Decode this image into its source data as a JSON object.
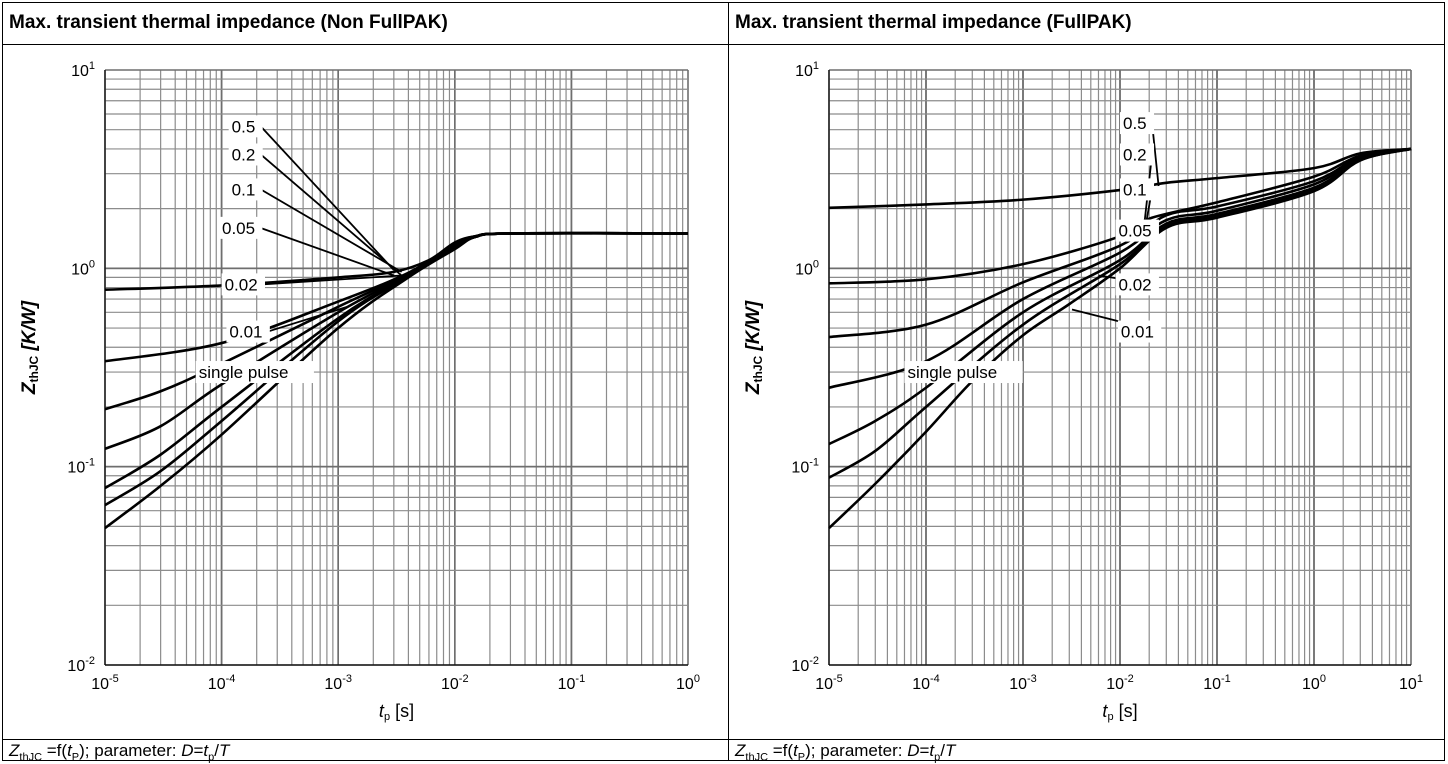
{
  "panels": [
    {
      "title": "Max. transient thermal impedance (Non FullPAK)",
      "caption": {
        "z": "Z",
        "z_sub": "thJC",
        "mid": " =f(",
        "t": "t",
        "t_sub": "P",
        "rest": "); parameter: ",
        "d": "D",
        "eq": "=",
        "t2": "t",
        "t2_sub": "p",
        "slash": "/",
        "T": "T"
      }
    },
    {
      "title": "Max. transient thermal impedance (FullPAK)",
      "caption": {
        "z": "Z",
        "z_sub": "thJC",
        "mid": " =f(",
        "t": "t",
        "t_sub": "P",
        "rest": "); parameter: ",
        "d": "D",
        "eq": "=",
        "t2": "t",
        "t2_sub": "p",
        "slash": "/",
        "T": "T"
      }
    }
  ],
  "chart_data": [
    {
      "type": "line",
      "title": "Max. transient thermal impedance (Non FullPAK)",
      "xscale": "log",
      "yscale": "log",
      "xlabel": "tp [s]",
      "xlabel_main": "t",
      "xlabel_sub": "p",
      "xlabel_unit": " [s]",
      "ylabel": "ZthJC [K/W]",
      "ylabel_main": "Z",
      "ylabel_sub": "thJC",
      "ylabel_unit": " [K/W]",
      "xlim": [
        1e-05,
        1
      ],
      "ylim": [
        0.01,
        10
      ],
      "grid": true,
      "x_ticks": [
        {
          "v": 1e-05,
          "base": "10",
          "exp": "-5"
        },
        {
          "v": 0.0001,
          "base": "10",
          "exp": "-4"
        },
        {
          "v": 0.001,
          "base": "10",
          "exp": "-3"
        },
        {
          "v": 0.01,
          "base": "10",
          "exp": "-2"
        },
        {
          "v": 0.1,
          "base": "10",
          "exp": "-1"
        },
        {
          "v": 1,
          "base": "10",
          "exp": "0"
        }
      ],
      "y_ticks": [
        {
          "v": 0.01,
          "base": "10",
          "exp": "-2"
        },
        {
          "v": 0.1,
          "base": "10",
          "exp": "-1"
        },
        {
          "v": 1,
          "base": "10",
          "exp": "0"
        },
        {
          "v": 10,
          "base": "10",
          "exp": "1"
        }
      ],
      "series": [
        {
          "name": "0.5",
          "points": [
            [
              1e-05,
              0.78
            ],
            [
              0.0001,
              0.82
            ],
            [
              0.001,
              0.9
            ],
            [
              0.003,
              0.96
            ],
            [
              0.006,
              1.1
            ],
            [
              0.01,
              1.35
            ],
            [
              0.015,
              1.45
            ],
            [
              0.03,
              1.5
            ],
            [
              1,
              1.5
            ]
          ],
          "label": {
            "x": 0.000115,
            "y": 5.2
          },
          "anchor": {
            "x": 0.003,
            "y": 0.98
          }
        },
        {
          "name": "0.2",
          "points": [
            [
              1e-05,
              0.34
            ],
            [
              0.0001,
              0.42
            ],
            [
              0.001,
              0.68
            ],
            [
              0.004,
              0.95
            ],
            [
              0.01,
              1.32
            ],
            [
              0.015,
              1.45
            ],
            [
              0.03,
              1.5
            ],
            [
              1,
              1.5
            ]
          ],
          "label": {
            "x": 0.000115,
            "y": 3.75
          },
          "anchor": {
            "x": 0.0035,
            "y": 0.92
          }
        },
        {
          "name": "0.1",
          "points": [
            [
              1e-05,
              0.195
            ],
            [
              3e-05,
              0.24
            ],
            [
              0.0001,
              0.33
            ],
            [
              0.001,
              0.64
            ],
            [
              0.004,
              0.94
            ],
            [
              0.01,
              1.3
            ],
            [
              0.015,
              1.45
            ],
            [
              0.03,
              1.5
            ],
            [
              1,
              1.5
            ]
          ],
          "label": {
            "x": 0.000115,
            "y": 2.5
          },
          "anchor": {
            "x": 0.0035,
            "y": 0.96
          }
        },
        {
          "name": "0.05",
          "points": [
            [
              1e-05,
              0.123
            ],
            [
              3e-05,
              0.16
            ],
            [
              0.0001,
              0.26
            ],
            [
              0.001,
              0.6
            ],
            [
              0.004,
              0.93
            ],
            [
              0.01,
              1.28
            ],
            [
              0.015,
              1.44
            ],
            [
              0.03,
              1.5
            ],
            [
              1,
              1.5
            ]
          ],
          "label": {
            "x": 9.5e-05,
            "y": 1.6
          },
          "anchor": {
            "x": 0.003,
            "y": 0.92
          }
        },
        {
          "name": "0.02",
          "points": [
            [
              1e-05,
              0.078
            ],
            [
              3e-05,
              0.115
            ],
            [
              0.0001,
              0.2
            ],
            [
              0.001,
              0.56
            ],
            [
              0.004,
              0.92
            ],
            [
              0.01,
              1.27
            ],
            [
              0.015,
              1.44
            ],
            [
              0.03,
              1.5
            ],
            [
              1,
              1.5
            ]
          ],
          "label": {
            "x": 0.0001,
            "y": 0.83
          },
          "anchor": {
            "x": 0.0035,
            "y": 0.92
          }
        },
        {
          "name": "0.01",
          "points": [
            [
              1e-05,
              0.064
            ],
            [
              3e-05,
              0.095
            ],
            [
              0.0001,
              0.17
            ],
            [
              0.001,
              0.54
            ],
            [
              0.004,
              0.91
            ],
            [
              0.01,
              1.26
            ],
            [
              0.015,
              1.44
            ],
            [
              0.03,
              1.5
            ],
            [
              1,
              1.5
            ]
          ],
          "label": {
            "x": 0.00011,
            "y": 0.48
          },
          "anchor": {
            "x": 0.0012,
            "y": 0.64
          }
        },
        {
          "name": "single pulse",
          "points": [
            [
              1e-05,
              0.049
            ],
            [
              3e-05,
              0.08
            ],
            [
              0.0001,
              0.145
            ],
            [
              0.001,
              0.5
            ],
            [
              0.004,
              0.9
            ],
            [
              0.01,
              1.25
            ],
            [
              0.015,
              1.44
            ],
            [
              0.03,
              1.5
            ],
            [
              1,
              1.5
            ]
          ],
          "label": {
            "x": 6e-05,
            "y": 0.3
          },
          "anchor": null
        }
      ]
    },
    {
      "type": "line",
      "title": "Max. transient thermal impedance (FullPAK)",
      "xscale": "log",
      "yscale": "log",
      "xlabel": "tp [s]",
      "xlabel_main": "t",
      "xlabel_sub": "p",
      "xlabel_unit": " [s]",
      "ylabel": "ZthJC [K/W]",
      "ylabel_main": "Z",
      "ylabel_sub": "thJC",
      "ylabel_unit": " [K/W]",
      "xlim": [
        1e-05,
        10
      ],
      "ylim": [
        0.01,
        10
      ],
      "grid": true,
      "x_ticks": [
        {
          "v": 1e-05,
          "base": "10",
          "exp": "-5"
        },
        {
          "v": 0.0001,
          "base": "10",
          "exp": "-4"
        },
        {
          "v": 0.001,
          "base": "10",
          "exp": "-3"
        },
        {
          "v": 0.01,
          "base": "10",
          "exp": "-2"
        },
        {
          "v": 0.1,
          "base": "10",
          "exp": "-1"
        },
        {
          "v": 1,
          "base": "10",
          "exp": "0"
        },
        {
          "v": 10,
          "base": "10",
          "exp": "1"
        }
      ],
      "y_ticks": [
        {
          "v": 0.01,
          "base": "10",
          "exp": "-2"
        },
        {
          "v": 0.1,
          "base": "10",
          "exp": "-1"
        },
        {
          "v": 1,
          "base": "10",
          "exp": "0"
        },
        {
          "v": 10,
          "base": "10",
          "exp": "1"
        }
      ],
      "series": [
        {
          "name": "0.5",
          "points": [
            [
              1e-05,
              2.02
            ],
            [
              0.0001,
              2.1
            ],
            [
              0.001,
              2.22
            ],
            [
              0.01,
              2.48
            ],
            [
              0.03,
              2.7
            ],
            [
              0.1,
              2.85
            ],
            [
              1,
              3.2
            ],
            [
              3,
              3.8
            ],
            [
              10,
              4.0
            ]
          ],
          "label": {
            "x": 0.01,
            "y": 5.4
          },
          "anchor": {
            "x": 0.025,
            "y": 2.6
          }
        },
        {
          "name": "0.2",
          "points": [
            [
              1e-05,
              0.84
            ],
            [
              0.0001,
              0.88
            ],
            [
              0.001,
              1.05
            ],
            [
              0.01,
              1.45
            ],
            [
              0.02,
              1.78
            ],
            [
              0.1,
              2.15
            ],
            [
              1,
              2.9
            ],
            [
              3,
              3.7
            ],
            [
              10,
              4.0
            ]
          ],
          "label": {
            "x": 0.01,
            "y": 3.75
          },
          "anchor": {
            "x": 0.018,
            "y": 1.75
          }
        },
        {
          "name": "0.1",
          "points": [
            [
              1e-05,
              0.45
            ],
            [
              0.0001,
              0.52
            ],
            [
              0.001,
              0.85
            ],
            [
              0.01,
              1.3
            ],
            [
              0.03,
              1.85
            ],
            [
              0.1,
              2.05
            ],
            [
              1,
              2.75
            ],
            [
              3,
              3.65
            ],
            [
              10,
              4.0
            ]
          ],
          "label": {
            "x": 0.01,
            "y": 2.5
          },
          "anchor": {
            "x": 0.018,
            "y": 1.55
          }
        },
        {
          "name": "0.05",
          "points": [
            [
              1e-05,
              0.25
            ],
            [
              0.0001,
              0.34
            ],
            [
              0.001,
              0.7
            ],
            [
              0.01,
              1.2
            ],
            [
              0.03,
              1.75
            ],
            [
              0.1,
              1.95
            ],
            [
              1,
              2.65
            ],
            [
              3,
              3.6
            ],
            [
              10,
              4.0
            ]
          ],
          "label": {
            "x": 0.009,
            "y": 1.55
          },
          "anchor": {
            "x": 0.015,
            "y": 1.38
          }
        },
        {
          "name": "0.02",
          "points": [
            [
              1e-05,
              0.13
            ],
            [
              3e-05,
              0.17
            ],
            [
              0.0001,
              0.25
            ],
            [
              0.001,
              0.6
            ],
            [
              0.01,
              1.1
            ],
            [
              0.03,
              1.68
            ],
            [
              0.1,
              1.88
            ],
            [
              1,
              2.55
            ],
            [
              3,
              3.55
            ],
            [
              10,
              4.0
            ]
          ],
          "label": {
            "x": 0.009,
            "y": 0.83
          },
          "anchor": {
            "x": 0.006,
            "y": 0.92
          }
        },
        {
          "name": "0.01",
          "points": [
            [
              1e-05,
              0.088
            ],
            [
              3e-05,
              0.12
            ],
            [
              0.0001,
              0.2
            ],
            [
              0.001,
              0.52
            ],
            [
              0.01,
              1.05
            ],
            [
              0.03,
              1.63
            ],
            [
              0.1,
              1.84
            ],
            [
              1,
              2.5
            ],
            [
              3,
              3.52
            ],
            [
              10,
              4.0
            ]
          ],
          "label": {
            "x": 0.0095,
            "y": 0.48
          },
          "anchor": {
            "x": 0.0032,
            "y": 0.62
          }
        },
        {
          "name": "single pulse",
          "points": [
            [
              1e-05,
              0.049
            ],
            [
              3e-05,
              0.082
            ],
            [
              0.0001,
              0.15
            ],
            [
              0.0003,
              0.27
            ],
            [
              0.001,
              0.46
            ],
            [
              0.003,
              0.66
            ],
            [
              0.01,
              1.0
            ],
            [
              0.03,
              1.6
            ],
            [
              0.1,
              1.8
            ],
            [
              1,
              2.45
            ],
            [
              3,
              3.5
            ],
            [
              10,
              4.0
            ]
          ],
          "label": {
            "x": 6e-05,
            "y": 0.3
          },
          "anchor": null
        }
      ]
    }
  ]
}
